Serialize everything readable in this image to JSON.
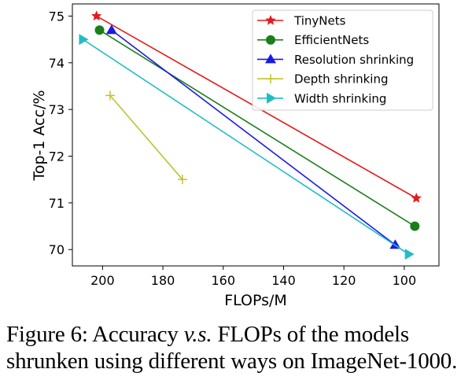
{
  "chart_data": {
    "type": "line",
    "xlabel": "FLOPs/M",
    "ylabel": "Top-1 Acc/%",
    "xlim": [
      210,
      88.5
    ],
    "ylim": [
      69.65,
      75.26
    ],
    "x_reversed": true,
    "xticks": [
      200,
      180,
      160,
      140,
      120,
      100
    ],
    "yticks": [
      70,
      71,
      72,
      73,
      74,
      75
    ],
    "grid": false,
    "legend_position": "top-right",
    "series": [
      {
        "name": "TinyNets",
        "color": "#e41a1a",
        "marker": "star",
        "x": [
          202,
          96
        ],
        "y": [
          75.0,
          71.1
        ]
      },
      {
        "name": "EfficientNets",
        "color": "#1a7f1a",
        "marker": "circle",
        "x": [
          201,
          96.5
        ],
        "y": [
          74.7,
          70.5
        ]
      },
      {
        "name": "Resolution shrinking",
        "color": "#1a1ae6",
        "marker": "triangle-up",
        "x": [
          197,
          103
        ],
        "y": [
          74.7,
          70.1
        ]
      },
      {
        "name": "Depth shrinking",
        "color": "#c2c232",
        "marker": "plus",
        "x": [
          197.5,
          173.5
        ],
        "y": [
          73.3,
          71.5
        ]
      },
      {
        "name": "Width shrinking",
        "color": "#22bcc4",
        "marker": "triangle-right",
        "x": [
          206.5,
          98.5
        ],
        "y": [
          74.5,
          69.9
        ]
      }
    ]
  },
  "caption": {
    "prefix": "Figure 6:  Accuracy ",
    "italic": "v.s.",
    "suffix": "  FLOPs of the models shrunken using different ways on ImageNet-1000."
  }
}
